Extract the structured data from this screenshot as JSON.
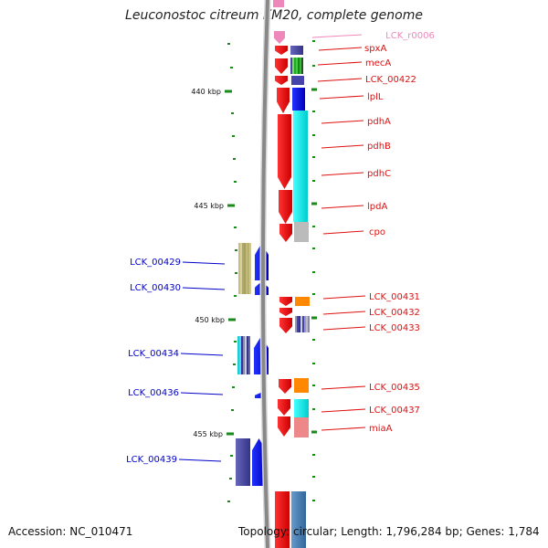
{
  "title": "Leuconostoc citreum KM20, complete genome",
  "footer": {
    "accession": "Accession: NC_010471",
    "stats": "Topology: circular; Length: 1,796,284 bp; Genes: 1,784"
  },
  "colors": {
    "backbone": "#888888",
    "tick": "#1a8a1a",
    "label_forward": "#dd1111",
    "label_reverse": "#0000cc",
    "label_rna": "#ee88bb"
  },
  "scale_labels": [
    "440 kbp",
    "445 kbp",
    "450 kbp",
    "455 kbp"
  ],
  "genes_right": [
    {
      "label": "LCK_r0006",
      "kind": "rna"
    },
    {
      "label": "spxA",
      "kind": "forward"
    },
    {
      "label": "mecA",
      "kind": "forward"
    },
    {
      "label": "LCK_00422",
      "kind": "forward"
    },
    {
      "label": "lplL",
      "kind": "forward"
    },
    {
      "label": "pdhA",
      "kind": "forward"
    },
    {
      "label": "pdhB",
      "kind": "forward"
    },
    {
      "label": "pdhC",
      "kind": "forward"
    },
    {
      "label": "lpdA",
      "kind": "forward"
    },
    {
      "label": "cpo",
      "kind": "forward"
    },
    {
      "label": "LCK_00431",
      "kind": "forward"
    },
    {
      "label": "LCK_00432",
      "kind": "forward"
    },
    {
      "label": "LCK_00433",
      "kind": "forward"
    },
    {
      "label": "LCK_00435",
      "kind": "forward"
    },
    {
      "label": "LCK_00437",
      "kind": "forward"
    },
    {
      "label": "miaA",
      "kind": "forward"
    }
  ],
  "genes_left": [
    {
      "label": "LCK_00429",
      "kind": "reverse"
    },
    {
      "label": "LCK_00430",
      "kind": "reverse"
    },
    {
      "label": "LCK_00434",
      "kind": "reverse"
    },
    {
      "label": "LCK_00436",
      "kind": "reverse"
    },
    {
      "label": "LCK_00439",
      "kind": "reverse"
    }
  ]
}
